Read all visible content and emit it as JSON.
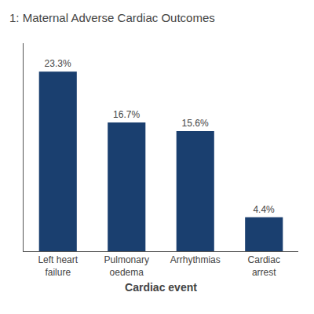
{
  "chart_data": {
    "type": "bar",
    "title": "1: Maternal Adverse Cardiac Outcomes",
    "xlabel": "Cardiac event",
    "categories": [
      "Left heart\nfailure",
      "Pulmonary\noedema",
      "Arrhythmias",
      "Cardiac\narrest"
    ],
    "values": [
      23.3,
      16.7,
      15.6,
      4.4
    ],
    "value_labels": [
      "23.3%",
      "16.7%",
      "15.6%",
      "4.4%"
    ],
    "data_labels": true,
    "color": "#1a3f6f",
    "ylim": [
      0,
      27
    ],
    "tick_labels": "x",
    "grid": false
  }
}
